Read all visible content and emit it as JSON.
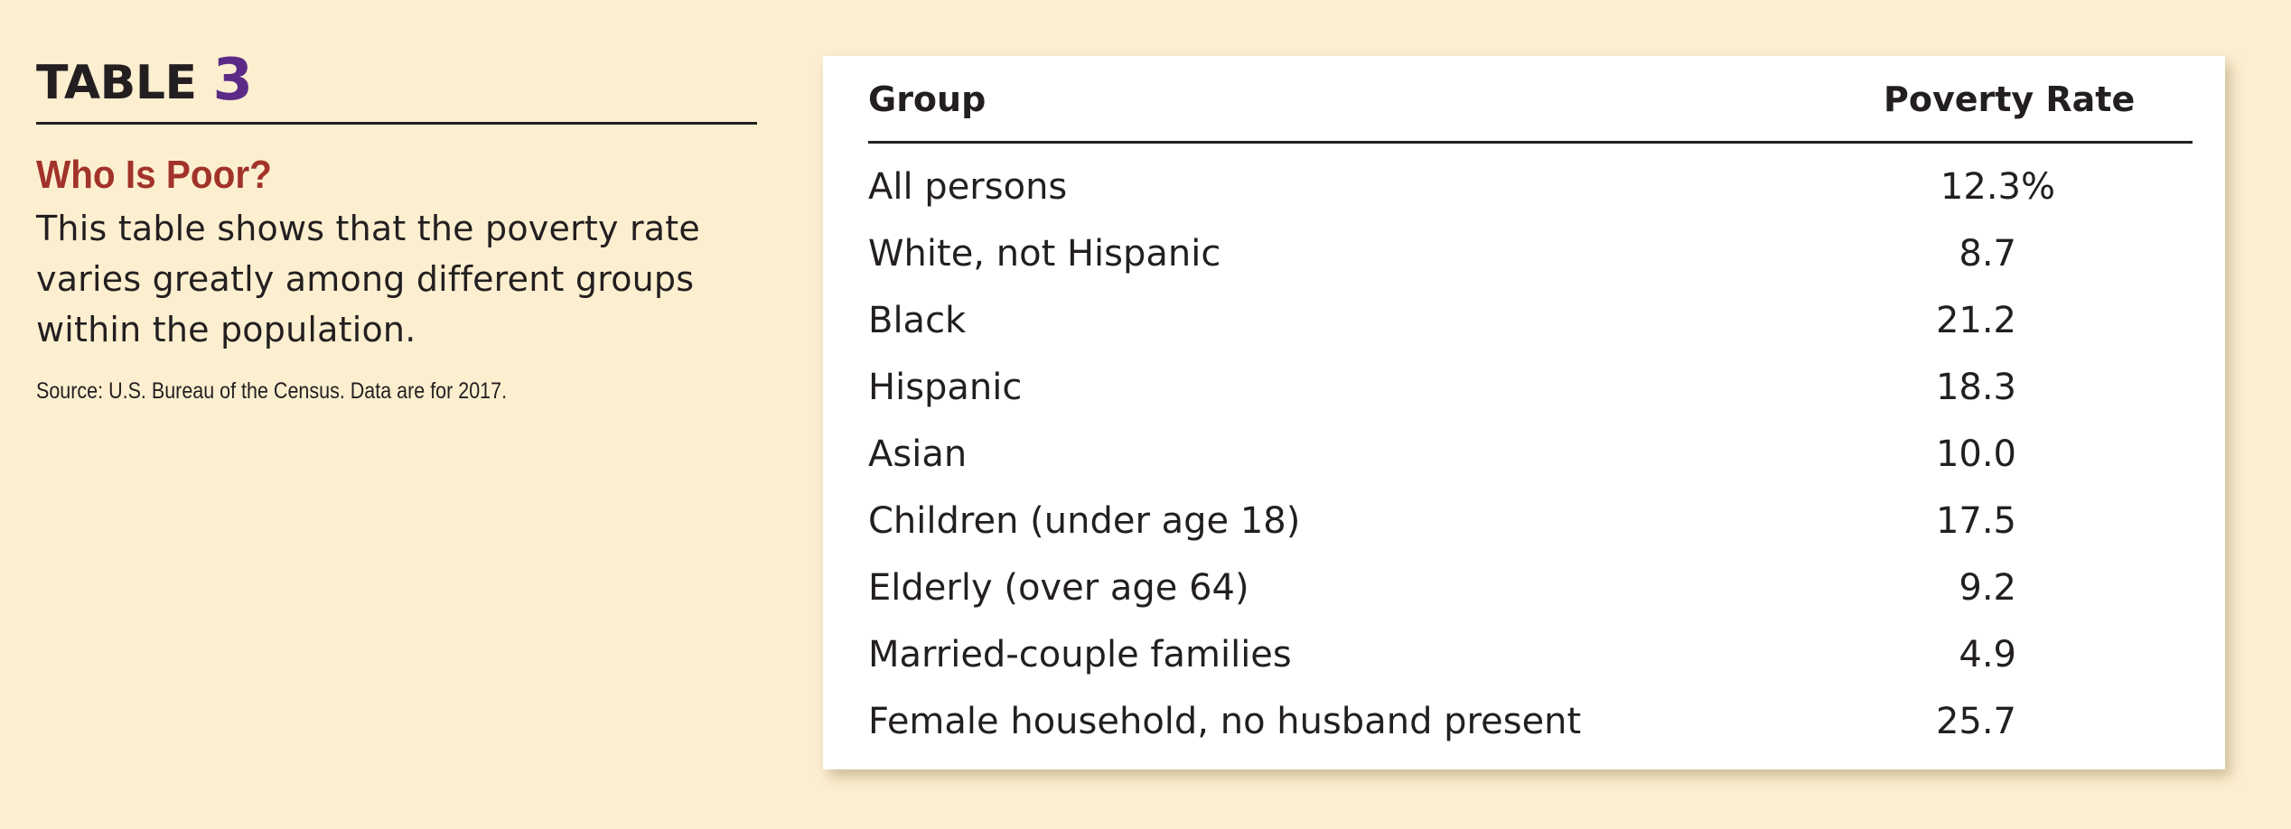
{
  "caption": {
    "table_word": "TABLE",
    "table_number": "3",
    "title": "Who Is Poor?",
    "description_lines": [
      "This table shows that the poverty rate",
      "varies greatly among different groups",
      "within the population."
    ],
    "source": "Source: U.S. Bureau of the Census. Data are for 2017."
  },
  "table": {
    "headers": [
      "Group",
      "Poverty Rate"
    ],
    "rows": [
      {
        "group": "All persons",
        "rate": "12.3%"
      },
      {
        "group": "White, not Hispanic",
        "rate": "8.7"
      },
      {
        "group": "Black",
        "rate": "21.2"
      },
      {
        "group": "Hispanic",
        "rate": "18.3"
      },
      {
        "group": "Asian",
        "rate": "10.0"
      },
      {
        "group": "Children (under age 18)",
        "rate": "17.5"
      },
      {
        "group": "Elderly (over age 64)",
        "rate": "9.2"
      },
      {
        "group": "Married-couple families",
        "rate": "4.9"
      },
      {
        "group": "Female household, no husband present",
        "rate": "25.7"
      }
    ]
  },
  "colors": {
    "background": "#fcefd0",
    "title_accent": "#a2332a",
    "number_accent": "#5b2a86",
    "card": "#ffffff",
    "text": "#231f20"
  }
}
